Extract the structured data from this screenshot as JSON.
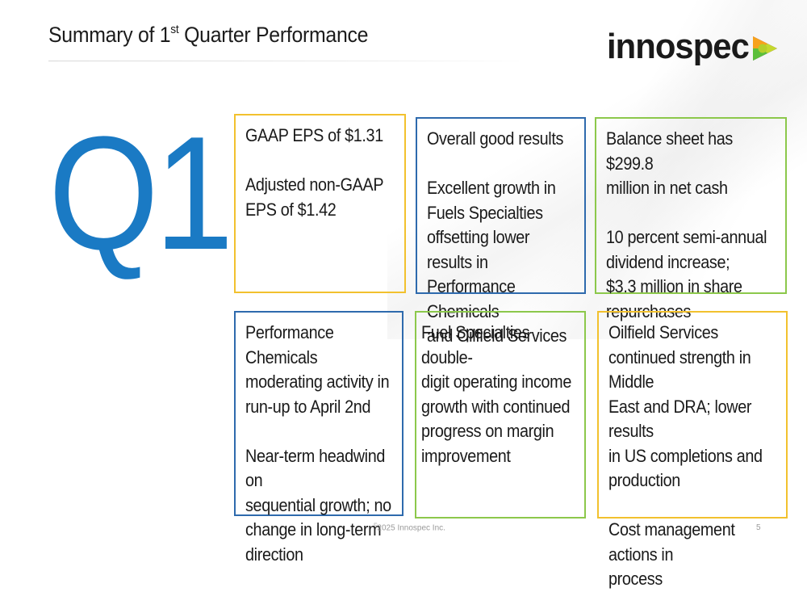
{
  "slide": {
    "title_pre": "Summary of 1",
    "title_sup": "st",
    "title_post": " Quarter Performance",
    "big_label": "Q1"
  },
  "logo": {
    "text": "innospec",
    "mark_icon": "arrow-play-icon",
    "colors": {
      "text": "#1a1a1a",
      "orange": "#f7a21b",
      "yellow_green": "#c4d82e",
      "purple": "#7b2d8e",
      "green": "#5bbf3a"
    }
  },
  "boxes": [
    {
      "id": "gaap-eps",
      "color": "#f2c12e",
      "paragraphs": [
        "GAAP EPS of $1.31",
        "Adjusted non-GAAP\nEPS of $1.42"
      ]
    },
    {
      "id": "overall-results",
      "color": "#2e6aad",
      "paragraphs": [
        "Overall good results",
        "Excellent growth in\nFuels Specialties\noffsetting lower results in\nPerformance Chemicals\nand Oilfield Services"
      ]
    },
    {
      "id": "balance-sheet",
      "color": "#8cc84b",
      "paragraphs": [
        "Balance sheet has $299.8\nmillion in net cash",
        "10 percent semi-annual\ndividend increase;\n$3.3 million in share\nrepurchases"
      ]
    },
    {
      "id": "performance-chemicals",
      "color": "#2e6aad",
      "paragraphs": [
        "Performance Chemicals\nmoderating activity in\nrun-up to April 2nd",
        "Near-term headwind on\nsequential growth; no\nchange in long-term\ndirection"
      ]
    },
    {
      "id": "fuel-specialties",
      "color": "#8cc84b",
      "paragraphs": [
        "Fuel Specialties double-\ndigit operating income\ngrowth with continued\nprogress on margin\nimprovement"
      ]
    },
    {
      "id": "oilfield-services",
      "color": "#f2c12e",
      "paragraphs": [
        "Oilfield Services\ncontinued strength in Middle\nEast and DRA; lower results\nin US completions and\nproduction",
        "Cost management actions in\nprocess"
      ]
    }
  ],
  "footer": {
    "copyright_symbol": "©",
    "copyright_text": "2025 Innospec Inc.",
    "page_number": "5"
  }
}
